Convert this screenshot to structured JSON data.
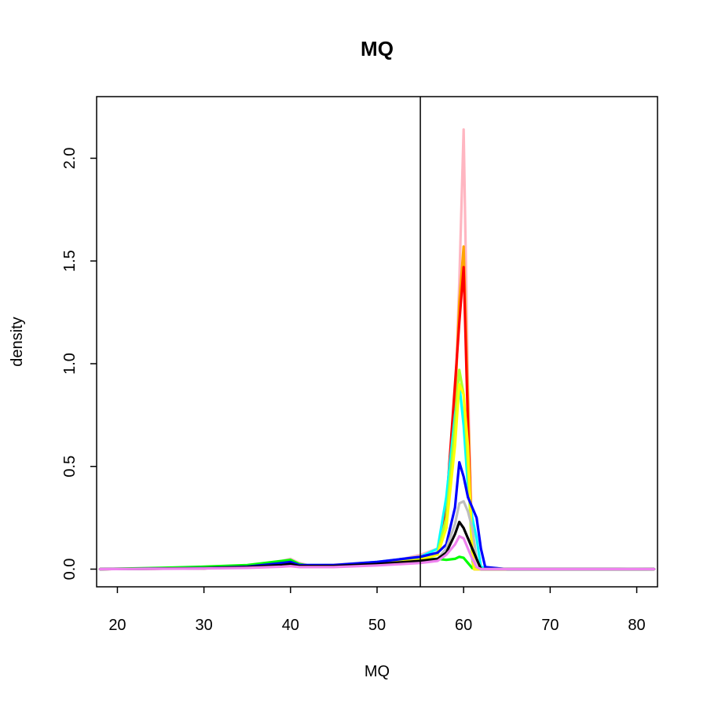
{
  "chart_data": {
    "type": "line",
    "title": "MQ",
    "xlabel": "MQ",
    "ylabel": "density",
    "xlim": [
      17.6,
      82.4
    ],
    "ylim": [
      -0.086,
      2.3
    ],
    "xticks": [
      "20",
      "30",
      "40",
      "50",
      "60",
      "70",
      "80"
    ],
    "yticks": [
      "0.0",
      "0.5",
      "1.0",
      "1.5",
      "2.0"
    ],
    "grid": false,
    "legend": "none",
    "vline": {
      "x": 55,
      "color": "#000000"
    },
    "series": [
      {
        "color": "#ffb6c1",
        "points": [
          [
            18,
            0
          ],
          [
            25,
            0.003
          ],
          [
            30,
            0.006
          ],
          [
            35,
            0.012
          ],
          [
            38,
            0.03
          ],
          [
            40,
            0.05
          ],
          [
            41,
            0.03
          ],
          [
            42,
            0.02
          ],
          [
            45,
            0.022
          ],
          [
            50,
            0.035
          ],
          [
            53,
            0.05
          ],
          [
            55,
            0.07
          ],
          [
            57,
            0.1
          ],
          [
            58,
            0.2
          ],
          [
            59,
            0.8
          ],
          [
            59.5,
            1.4
          ],
          [
            60,
            2.14
          ],
          [
            60.5,
            0.9
          ],
          [
            61,
            0.1
          ],
          [
            61.5,
            0.0
          ],
          [
            65,
            0
          ],
          [
            70,
            0
          ],
          [
            80,
            0
          ],
          [
            82,
            0
          ]
        ]
      },
      {
        "color": "#ffa500",
        "points": [
          [
            18,
            0
          ],
          [
            30,
            0.005
          ],
          [
            35,
            0.01
          ],
          [
            39,
            0.025
          ],
          [
            40,
            0.035
          ],
          [
            41,
            0.02
          ],
          [
            45,
            0.015
          ],
          [
            50,
            0.03
          ],
          [
            55,
            0.05
          ],
          [
            57,
            0.08
          ],
          [
            58,
            0.2
          ],
          [
            59,
            0.8
          ],
          [
            59.5,
            1.3
          ],
          [
            60,
            1.57
          ],
          [
            60.5,
            0.8
          ],
          [
            61,
            0.05
          ],
          [
            61.2,
            0
          ],
          [
            65,
            0
          ],
          [
            82,
            0
          ]
        ]
      },
      {
        "color": "#ff0000",
        "points": [
          [
            18,
            0
          ],
          [
            30,
            0.004
          ],
          [
            35,
            0.01
          ],
          [
            39,
            0.022
          ],
          [
            40,
            0.03
          ],
          [
            41,
            0.018
          ],
          [
            45,
            0.015
          ],
          [
            50,
            0.03
          ],
          [
            55,
            0.05
          ],
          [
            57,
            0.08
          ],
          [
            58,
            0.3
          ],
          [
            59,
            0.9
          ],
          [
            59.5,
            1.2
          ],
          [
            60,
            1.47
          ],
          [
            60.5,
            0.7
          ],
          [
            61,
            0.05
          ],
          [
            61.2,
            0
          ],
          [
            65,
            0
          ],
          [
            82,
            0
          ]
        ]
      },
      {
        "color": "#00ffff",
        "points": [
          [
            18,
            0
          ],
          [
            30,
            0.006
          ],
          [
            35,
            0.012
          ],
          [
            39,
            0.03
          ],
          [
            40,
            0.035
          ],
          [
            41,
            0.02
          ],
          [
            45,
            0.02
          ],
          [
            50,
            0.035
          ],
          [
            55,
            0.06
          ],
          [
            57,
            0.1
          ],
          [
            58,
            0.35
          ],
          [
            59,
            0.75
          ],
          [
            59.5,
            0.9
          ],
          [
            60,
            0.7
          ],
          [
            60.5,
            0.4
          ],
          [
            61,
            0.25
          ],
          [
            61.5,
            0.15
          ],
          [
            62,
            0.01
          ],
          [
            65,
            0
          ],
          [
            82,
            0
          ]
        ]
      },
      {
        "color": "#00ff00",
        "points": [
          [
            18,
            0
          ],
          [
            20,
            0.002
          ],
          [
            25,
            0.006
          ],
          [
            30,
            0.012
          ],
          [
            35,
            0.02
          ],
          [
            38,
            0.035
          ],
          [
            40,
            0.045
          ],
          [
            41,
            0.025
          ],
          [
            42,
            0.018
          ],
          [
            45,
            0.018
          ],
          [
            50,
            0.03
          ],
          [
            55,
            0.045
          ],
          [
            57,
            0.05
          ],
          [
            58,
            0.045
          ],
          [
            59,
            0.05
          ],
          [
            59.5,
            0.06
          ],
          [
            60,
            0.055
          ],
          [
            60.5,
            0.03
          ],
          [
            61,
            0.005
          ],
          [
            62,
            0
          ],
          [
            82,
            0
          ]
        ]
      },
      {
        "color": "#adff2f",
        "points": [
          [
            18,
            0
          ],
          [
            30,
            0.005
          ],
          [
            35,
            0.01
          ],
          [
            39,
            0.02
          ],
          [
            40,
            0.025
          ],
          [
            41,
            0.015
          ],
          [
            45,
            0.015
          ],
          [
            50,
            0.03
          ],
          [
            55,
            0.05
          ],
          [
            57,
            0.08
          ],
          [
            58,
            0.25
          ],
          [
            59,
            0.7
          ],
          [
            59.5,
            0.97
          ],
          [
            60,
            0.85
          ],
          [
            60.5,
            0.5
          ],
          [
            61,
            0.05
          ],
          [
            61.2,
            0
          ],
          [
            65,
            0
          ],
          [
            82,
            0
          ]
        ]
      },
      {
        "color": "#ffff00",
        "points": [
          [
            18,
            0
          ],
          [
            30,
            0.004
          ],
          [
            35,
            0.01
          ],
          [
            39,
            0.02
          ],
          [
            40,
            0.022
          ],
          [
            41,
            0.012
          ],
          [
            45,
            0.012
          ],
          [
            50,
            0.025
          ],
          [
            55,
            0.045
          ],
          [
            57,
            0.07
          ],
          [
            58,
            0.2
          ],
          [
            59,
            0.6
          ],
          [
            59.5,
            0.9
          ],
          [
            60,
            0.85
          ],
          [
            60.5,
            0.6
          ],
          [
            61,
            0.1
          ],
          [
            61.2,
            0
          ],
          [
            65,
            0
          ],
          [
            82,
            0
          ]
        ]
      },
      {
        "color": "#0000ff",
        "points": [
          [
            18,
            0
          ],
          [
            30,
            0.005
          ],
          [
            35,
            0.012
          ],
          [
            39,
            0.03
          ],
          [
            40,
            0.035
          ],
          [
            41,
            0.02
          ],
          [
            45,
            0.02
          ],
          [
            50,
            0.035
          ],
          [
            55,
            0.06
          ],
          [
            57,
            0.08
          ],
          [
            58,
            0.12
          ],
          [
            59,
            0.3
          ],
          [
            59.5,
            0.52
          ],
          [
            60,
            0.45
          ],
          [
            60.5,
            0.35
          ],
          [
            61,
            0.3
          ],
          [
            61.5,
            0.25
          ],
          [
            62,
            0.1
          ],
          [
            62.5,
            0.01
          ],
          [
            65,
            0
          ],
          [
            82,
            0
          ]
        ]
      },
      {
        "color": "#bebebe",
        "points": [
          [
            18,
            0
          ],
          [
            30,
            0.004
          ],
          [
            35,
            0.008
          ],
          [
            39,
            0.015
          ],
          [
            40,
            0.02
          ],
          [
            41,
            0.012
          ],
          [
            45,
            0.012
          ],
          [
            50,
            0.02
          ],
          [
            55,
            0.035
          ],
          [
            57,
            0.05
          ],
          [
            58,
            0.1
          ],
          [
            59,
            0.22
          ],
          [
            59.5,
            0.32
          ],
          [
            60,
            0.33
          ],
          [
            60.5,
            0.28
          ],
          [
            61,
            0.2
          ],
          [
            61.5,
            0.05
          ],
          [
            62,
            0
          ],
          [
            65,
            0.002
          ],
          [
            70,
            0.002
          ],
          [
            78,
            0.002
          ],
          [
            82,
            0
          ]
        ]
      },
      {
        "color": "#000000",
        "points": [
          [
            18,
            0
          ],
          [
            30,
            0.004
          ],
          [
            35,
            0.01
          ],
          [
            39,
            0.02
          ],
          [
            40,
            0.025
          ],
          [
            41,
            0.015
          ],
          [
            45,
            0.015
          ],
          [
            50,
            0.025
          ],
          [
            55,
            0.04
          ],
          [
            57,
            0.05
          ],
          [
            58,
            0.08
          ],
          [
            59,
            0.17
          ],
          [
            59.5,
            0.23
          ],
          [
            60,
            0.2
          ],
          [
            60.5,
            0.15
          ],
          [
            61,
            0.1
          ],
          [
            61.5,
            0.05
          ],
          [
            62,
            0
          ],
          [
            65,
            0
          ],
          [
            82,
            0
          ]
        ]
      },
      {
        "color": "#ee82ee",
        "points": [
          [
            18,
            0
          ],
          [
            30,
            0.003
          ],
          [
            35,
            0.006
          ],
          [
            39,
            0.012
          ],
          [
            40,
            0.015
          ],
          [
            41,
            0.01
          ],
          [
            45,
            0.01
          ],
          [
            50,
            0.018
          ],
          [
            55,
            0.03
          ],
          [
            57,
            0.04
          ],
          [
            58,
            0.07
          ],
          [
            59,
            0.12
          ],
          [
            59.5,
            0.16
          ],
          [
            60,
            0.15
          ],
          [
            60.5,
            0.1
          ],
          [
            61,
            0.05
          ],
          [
            61.5,
            0.01
          ],
          [
            62,
            0
          ],
          [
            82,
            0
          ]
        ]
      }
    ]
  }
}
